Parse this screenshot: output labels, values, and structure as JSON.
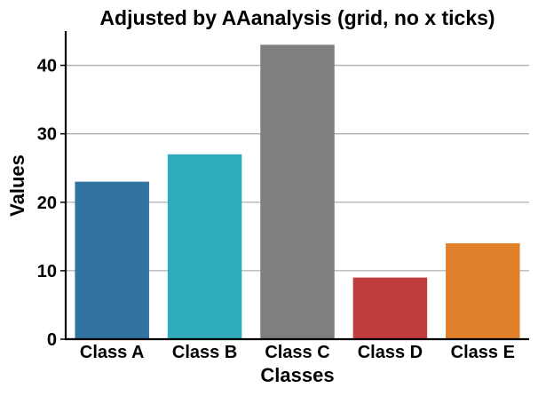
{
  "chart_data": {
    "type": "bar",
    "title": "Adjusted by AAanalysis (grid, no x ticks)",
    "xlabel": "Classes",
    "ylabel": "Values",
    "categories": [
      "Class A",
      "Class B",
      "Class C",
      "Class D",
      "Class E"
    ],
    "values": [
      23,
      27,
      43,
      9,
      14
    ],
    "colors": [
      "#3274a1",
      "#2eacbb",
      "#7f7f7f",
      "#c03d3e",
      "#e1812c"
    ],
    "ylim": [
      0,
      45
    ],
    "yticks": [
      0,
      10,
      20,
      30,
      40
    ],
    "grid": "horizontal",
    "legend": "none"
  }
}
